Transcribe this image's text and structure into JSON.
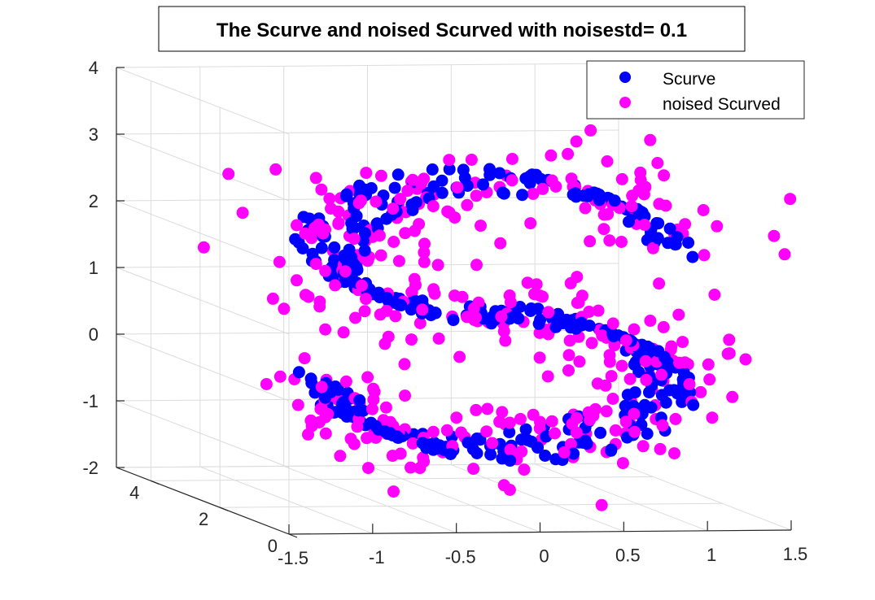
{
  "chart_data": {
    "type": "scatter",
    "title": "The Scurve and noised Scurved with noisestd= 0.1",
    "xlim": [
      -1.5,
      1.5
    ],
    "ylim": [
      0,
      5
    ],
    "zlim": [
      -2,
      4
    ],
    "x_ticks": [
      "-1.5",
      "-1",
      "-0.5",
      "0",
      "0.5",
      "1",
      "1.5"
    ],
    "y_ticks": [
      "0",
      "2",
      "4"
    ],
    "z_ticks": [
      "-2",
      "-1",
      "0",
      "1",
      "2",
      "3",
      "4"
    ],
    "grid": true,
    "legend_position": "top-right",
    "series": [
      {
        "name": "Scurve",
        "color": "#0000ff",
        "noise_std": 0
      },
      {
        "name": "noised Scurved",
        "color": "#ff00ff",
        "noise_std": 0.1
      }
    ],
    "points_per_series": 400
  }
}
